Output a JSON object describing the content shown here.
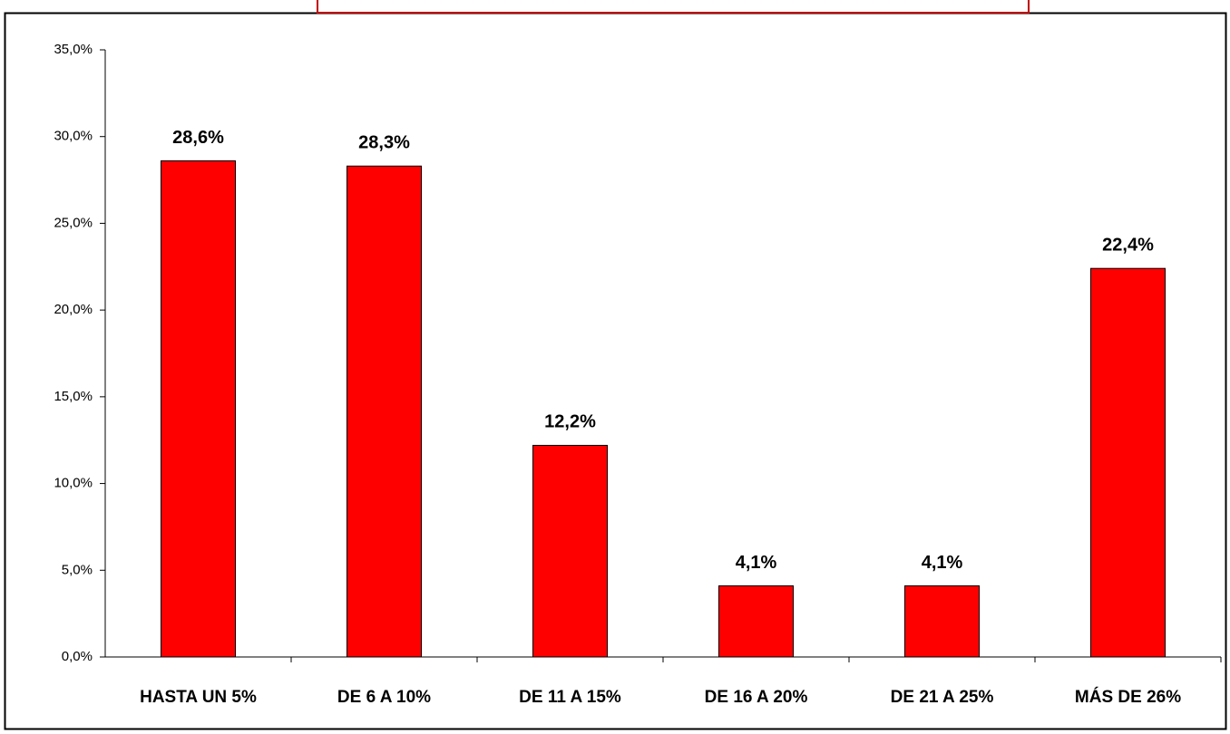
{
  "chart_data": {
    "type": "bar",
    "categories": [
      "HASTA UN 5%",
      "DE 6 A 10%",
      "DE 11 A 15%",
      "DE 16 A 20%",
      "DE 21 A 25%",
      "MÁS DE 26%"
    ],
    "values": [
      28.6,
      28.3,
      12.2,
      4.1,
      4.1,
      22.4
    ],
    "value_labels": [
      "28,6%",
      "28,3%",
      "12,2%",
      "4,1%",
      "4,1%",
      "22,4%"
    ],
    "color": "#ff0000",
    "ylim": [
      0,
      35
    ],
    "yticks": [
      {
        "value": 0,
        "label": "0,0%"
      },
      {
        "value": 5,
        "label": "5,0%"
      },
      {
        "value": 10,
        "label": "10,0%"
      },
      {
        "value": 15,
        "label": "15,0%"
      },
      {
        "value": 20,
        "label": "20,0%"
      },
      {
        "value": 25,
        "label": "25,0%"
      },
      {
        "value": 30,
        "label": "30,0%"
      },
      {
        "value": 35,
        "label": "35,0%"
      }
    ],
    "grid": false
  }
}
